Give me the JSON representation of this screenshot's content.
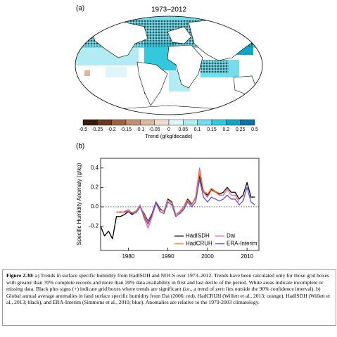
{
  "panel_a": {
    "label": "(a)",
    "title": "1973–2012",
    "colorbar": {
      "ticks": [
        -0.5,
        -0.25,
        -0.2,
        -0.15,
        -0.1,
        -0.05,
        0,
        0.05,
        0.1,
        0.15,
        0.2,
        0.25,
        0.5
      ],
      "colors": [
        "#3a1c08",
        "#6a3a1c",
        "#9a6442",
        "#bf8f70",
        "#dbb79f",
        "#efdccf",
        "#def6f8",
        "#b2ecf2",
        "#74dcea",
        "#34c8dc",
        "#12a6c6",
        "#0a74a6"
      ],
      "label": "Trend (g/kg/decade)"
    }
  },
  "chart_data": {
    "type": "line",
    "label": "(b)",
    "y_label": "Specific Humidity Anomaly (g/kg)",
    "x": [
      1973,
      1974,
      1975,
      1976,
      1977,
      1978,
      1979,
      1980,
      1981,
      1982,
      1983,
      1984,
      1985,
      1986,
      1987,
      1988,
      1989,
      1990,
      1991,
      1992,
      1993,
      1994,
      1995,
      1996,
      1997,
      1998,
      1999,
      2000,
      2001,
      2002,
      2003,
      2004,
      2005,
      2006,
      2007,
      2008,
      2009,
      2010,
      2011,
      2012
    ],
    "xlim": [
      1973,
      2013
    ],
    "xticks": [
      1980,
      1990,
      2000,
      2010
    ],
    "ylim": [
      -0.45,
      0.5
    ],
    "yticks": [
      -0.2,
      {
        "value": 0,
        "label": "0.0"
      },
      0.2,
      0.4
    ],
    "legend": "lower right",
    "series": [
      {
        "name": "HadISDH",
        "color": "#000000",
        "values": [
          -0.2,
          -0.3,
          -0.25,
          -0.33,
          -0.1,
          -0.1,
          -0.08,
          -0.05,
          -0.08,
          -0.05,
          0.0,
          -0.07,
          -0.15,
          -0.07,
          0.05,
          -0.02,
          -0.05,
          0.08,
          0.05,
          -0.08,
          -0.05,
          0.0,
          0.08,
          0.03,
          0.08,
          0.32,
          0.15,
          0.12,
          0.18,
          0.15,
          0.13,
          0.15,
          0.2,
          0.15,
          0.15,
          0.08,
          0.12,
          0.25,
          0.1,
          0.1
        ]
      },
      {
        "name": "Dai",
        "color": "#f0607e",
        "values": [
          null,
          null,
          null,
          null,
          -0.05,
          -0.06,
          -0.05,
          -0.03,
          -0.07,
          -0.05,
          0.02,
          -0.12,
          -0.22,
          -0.1,
          0.03,
          -0.03,
          -0.05,
          0.05,
          0.02,
          -0.08,
          -0.06,
          -0.02,
          0.06,
          0.02,
          0.1,
          0.4,
          0.15,
          0.1,
          0.17,
          0.15,
          0.12,
          0.12,
          0.18,
          0.12,
          0.12,
          0.05,
          null,
          null,
          null,
          null
        ]
      },
      {
        "name": "HadCRUH",
        "color": "#f08020",
        "values": [
          null,
          null,
          null,
          null,
          -0.06,
          -0.05,
          -0.06,
          -0.04,
          -0.06,
          -0.04,
          0.01,
          -0.08,
          -0.16,
          -0.08,
          0.04,
          -0.03,
          -0.04,
          0.07,
          0.04,
          -0.08,
          -0.05,
          0.0,
          0.07,
          0.02,
          0.08,
          0.35,
          0.17,
          0.13,
          0.19,
          0.16,
          0.14,
          null,
          null,
          null,
          null,
          null,
          null,
          null,
          null,
          null
        ]
      },
      {
        "name": "ERA-Interim",
        "color": "#6648f0",
        "values": [
          null,
          null,
          null,
          null,
          null,
          null,
          -0.05,
          -0.05,
          -0.07,
          -0.06,
          0.0,
          -0.1,
          -0.18,
          -0.08,
          0.05,
          -0.05,
          -0.07,
          0.05,
          0.02,
          -0.1,
          -0.07,
          -0.03,
          0.05,
          0.0,
          0.05,
          0.28,
          0.1,
          0.05,
          0.1,
          0.08,
          0.06,
          0.08,
          0.12,
          0.08,
          0.08,
          0.02,
          0.06,
          0.2,
          0.05,
          0.02
        ]
      }
    ]
  },
  "caption": {
    "label": "Figure 2.30:",
    "text": "a) Trends in surface specific humidity from HadISDH and NOCS over 1973–2012. Trends have been calculated only for those grid boxes with greater than 70% complete records and more than 20% data availability in first and last decile of the period. White areas indicate incomplete or missing data. Black plus signs (+) indicate grid boxes where trends are significant (i.e., a trend of zero lies outside the 90% confidence interval). b) Global annual average anomalies in land surface specific humidity from Dai (2006; red), HadCRUH (Willett et al., 2013; orange), HadISDH (Willett et al., 2013; black), and ERA-Interim (Simmons et al., 2010; blue). Anomalies are relative to the 1979-2003 climatology."
  }
}
